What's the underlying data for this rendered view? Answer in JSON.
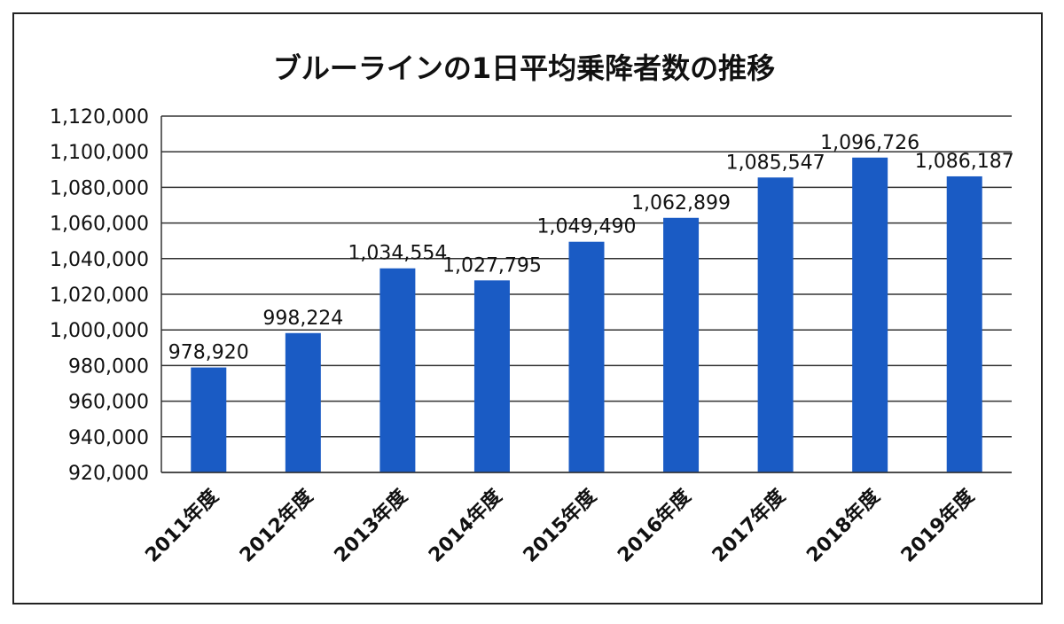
{
  "chart_data": {
    "type": "bar",
    "title": "ブルーラインの1日平均乗降者数の推移",
    "categories": [
      "2011年度",
      "2012年度",
      "2013年度",
      "2014年度",
      "2015年度",
      "2016年度",
      "2017年度",
      "2018年度",
      "2019年度"
    ],
    "values": [
      978920,
      998224,
      1034554,
      1027795,
      1049490,
      1062899,
      1085547,
      1096726,
      1086187
    ],
    "data_labels": [
      "978,920",
      "998,224",
      "1,034,554",
      "1,027,795",
      "1,049,490",
      "1,062,899",
      "1,085,547",
      "1,096,726",
      "1,086,187"
    ],
    "yticks": [
      "920,000",
      "940,000",
      "960,000",
      "980,000",
      "1,000,000",
      "1,020,000",
      "1,040,000",
      "1,060,000",
      "1,080,000",
      "1,100,000",
      "1,120,000"
    ],
    "ylim": [
      920000,
      1120000
    ],
    "ytick_step": 20000,
    "xlabel": "",
    "ylabel": "",
    "grid": true,
    "legend": "none",
    "bar_color": "#1a5bc4"
  }
}
